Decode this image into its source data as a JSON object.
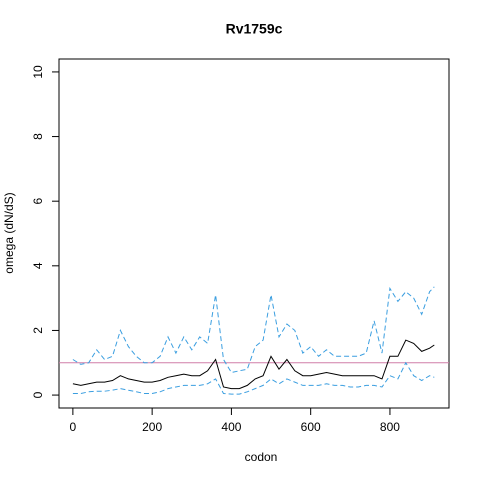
{
  "chart_data": {
    "type": "line",
    "title": "Rv1759c",
    "xlabel": "codon",
    "ylabel": "omega (dN/dS)",
    "x": [
      0,
      20,
      40,
      60,
      80,
      100,
      120,
      140,
      160,
      180,
      200,
      220,
      240,
      260,
      280,
      300,
      320,
      340,
      360,
      380,
      400,
      420,
      440,
      460,
      480,
      500,
      520,
      540,
      560,
      580,
      600,
      620,
      640,
      660,
      680,
      700,
      720,
      740,
      760,
      780,
      800,
      820,
      840,
      860,
      880,
      900,
      912
    ],
    "series": [
      {
        "color": "#000000",
        "dash": false,
        "values": [
          0.35,
          0.3,
          0.35,
          0.4,
          0.4,
          0.45,
          0.6,
          0.5,
          0.45,
          0.4,
          0.4,
          0.45,
          0.55,
          0.6,
          0.65,
          0.6,
          0.6,
          0.75,
          1.1,
          0.25,
          0.2,
          0.2,
          0.3,
          0.5,
          0.6,
          1.2,
          0.8,
          1.1,
          0.75,
          0.6,
          0.6,
          0.65,
          0.7,
          0.65,
          0.6,
          0.6,
          0.6,
          0.6,
          0.6,
          0.5,
          1.2,
          1.2,
          1.7,
          1.6,
          1.35,
          1.45,
          1.55
        ]
      },
      {
        "color": "#3a9ee0",
        "dash": true,
        "values": [
          1.1,
          0.95,
          1.0,
          1.4,
          1.1,
          1.2,
          2.0,
          1.5,
          1.2,
          1.0,
          1.0,
          1.2,
          1.8,
          1.3,
          1.8,
          1.4,
          1.8,
          1.6,
          3.1,
          1.1,
          0.7,
          0.75,
          0.8,
          1.5,
          1.7,
          3.1,
          1.8,
          2.2,
          2.0,
          1.3,
          1.5,
          1.2,
          1.4,
          1.2,
          1.2,
          1.2,
          1.2,
          1.3,
          2.3,
          1.3,
          3.3,
          2.9,
          3.2,
          3.0,
          2.5,
          3.2,
          3.35
        ]
      },
      {
        "color": "#3a9ee0",
        "dash": true,
        "values": [
          0.05,
          0.05,
          0.1,
          0.12,
          0.12,
          0.15,
          0.2,
          0.15,
          0.1,
          0.05,
          0.05,
          0.1,
          0.2,
          0.25,
          0.3,
          0.3,
          0.3,
          0.35,
          0.5,
          0.05,
          0.03,
          0.03,
          0.1,
          0.2,
          0.3,
          0.5,
          0.35,
          0.5,
          0.4,
          0.3,
          0.3,
          0.3,
          0.35,
          0.3,
          0.3,
          0.25,
          0.25,
          0.3,
          0.3,
          0.25,
          0.6,
          0.5,
          1.0,
          0.6,
          0.45,
          0.6,
          0.55
        ]
      }
    ],
    "hline": {
      "value": 1,
      "color": "#d07ea8"
    },
    "xlim": [
      -35,
      949
    ],
    "ylim": [
      -0.4,
      10.4
    ],
    "xticks": [
      0,
      200,
      400,
      600,
      800
    ],
    "yticks": [
      0,
      2,
      4,
      6,
      8,
      10
    ]
  }
}
